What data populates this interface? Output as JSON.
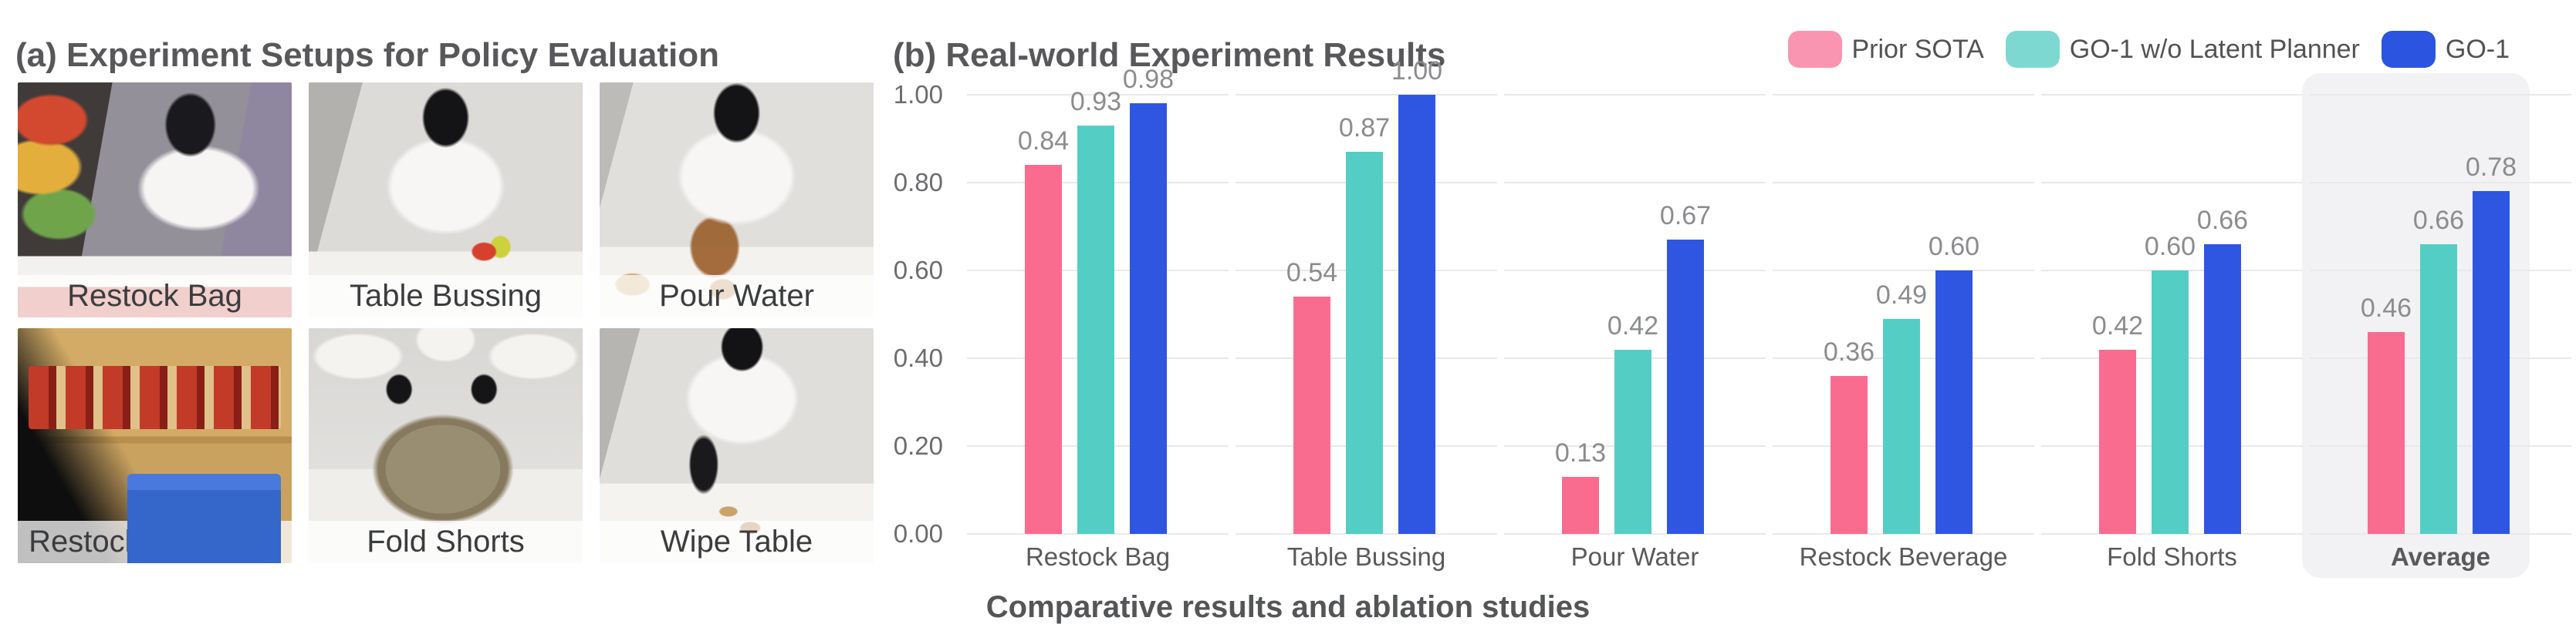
{
  "panel_a": {
    "title": "(a) Experiment Setups for Policy Evaluation",
    "photos": [
      {
        "scene": "restock-bag",
        "label": "Restock Bag"
      },
      {
        "scene": "table-bussing",
        "label": "Table Bussing"
      },
      {
        "scene": "pour-water",
        "label": "Pour Water"
      },
      {
        "scene": "restock-beverage",
        "label": "Restock Beverage"
      },
      {
        "scene": "fold-shorts",
        "label": "Fold Shorts"
      },
      {
        "scene": "wipe-table",
        "label": "Wipe Table"
      }
    ]
  },
  "panel_b": {
    "title": "(b) Real-world Experiment Results",
    "caption": "Comparative results and ablation studies"
  },
  "chart_data": {
    "type": "bar",
    "title": "(b) Real-world Experiment Results",
    "categories": [
      "Restock Bag",
      "Table Bussing",
      "Pour Water",
      "Restock Beverage",
      "Fold Shorts",
      "Average"
    ],
    "series": [
      {
        "name": "Prior SOTA",
        "color": "#fa6b90",
        "legend_color": "#f995b0",
        "values": [
          0.84,
          0.54,
          0.13,
          0.36,
          0.42,
          0.46
        ]
      },
      {
        "name": "GO-1 w/o Latent Planner",
        "color": "#54cec5",
        "legend_color": "#7ed8d2",
        "values": [
          0.93,
          0.87,
          0.42,
          0.49,
          0.6,
          0.66
        ]
      },
      {
        "name": "GO-1",
        "color": "#2e56e0",
        "legend_color": "#2b55e0",
        "values": [
          0.98,
          1.0,
          0.67,
          0.6,
          0.66,
          0.78
        ]
      }
    ],
    "y_ticks": [
      "0.00",
      "0.20",
      "0.40",
      "0.60",
      "0.80",
      "1.00"
    ],
    "ylim": [
      0,
      1.0
    ],
    "grid": "horizontal",
    "gridline_color": "#e9e9eb",
    "legend_position": "top-right",
    "value_labels": "above-bars",
    "highlight_category": "Average",
    "highlight_color": "#f2f2f4",
    "xlabel": "",
    "ylabel": ""
  }
}
